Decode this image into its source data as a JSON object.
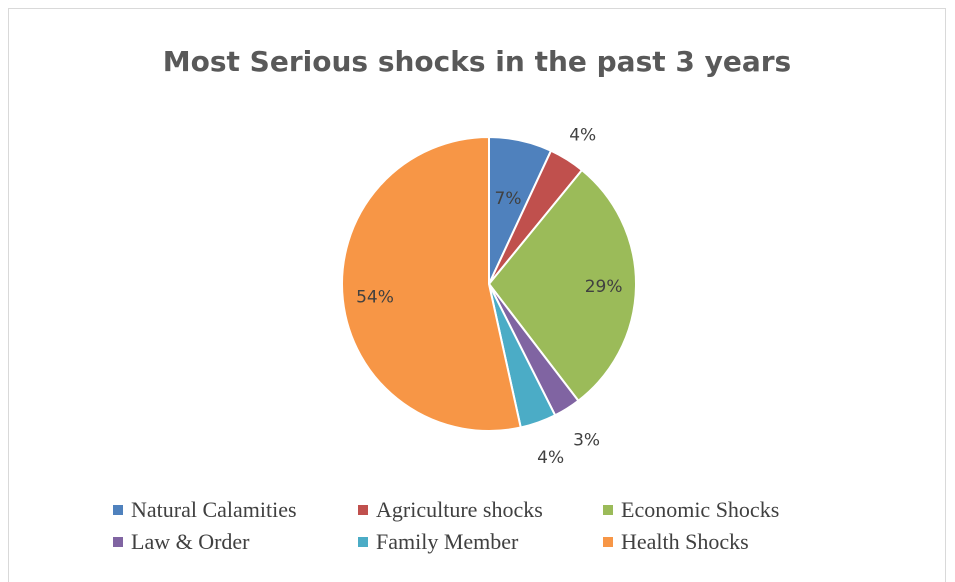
{
  "chart_data": {
    "type": "pie",
    "title": "Most Serious shocks in the past 3 years",
    "slices": [
      {
        "name": "Natural Calamities",
        "value": 7,
        "label": "7%",
        "color": "#4f81bd"
      },
      {
        "name": "Agriculture shocks",
        "value": 4,
        "label": "4%",
        "color": "#c0504d"
      },
      {
        "name": "Economic Shocks",
        "value": 29,
        "label": "29%",
        "color": "#9bbb59"
      },
      {
        "name": "Law & Order",
        "value": 3,
        "label": "3%",
        "color": "#8064a2"
      },
      {
        "name": "Family Member",
        "value": 4,
        "label": "4%",
        "color": "#4bacc6"
      },
      {
        "name": "Health Shocks",
        "value": 54,
        "label": "54%",
        "color": "#f79646"
      }
    ],
    "start_angle": "12 o'clock, clockwise",
    "legend_position": "bottom"
  }
}
